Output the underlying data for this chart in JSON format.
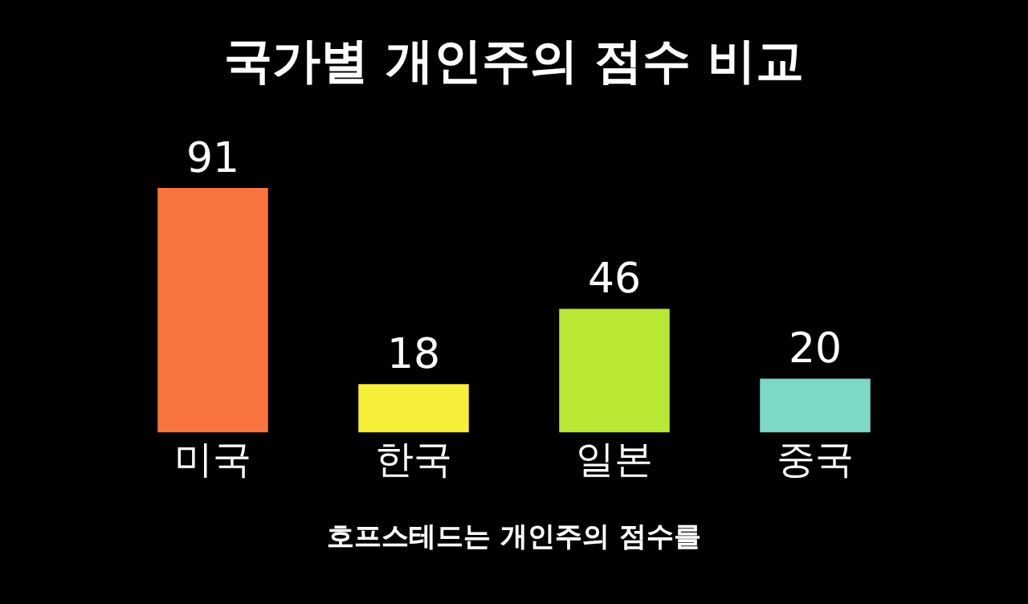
{
  "chart_data": {
    "type": "bar",
    "title": "국가별 개인주의 점수 비교",
    "categories": [
      "미국",
      "한국",
      "일본",
      "중국"
    ],
    "values": [
      91,
      18,
      46,
      20
    ],
    "colors": [
      "#f9733f",
      "#f7ee3a",
      "#b9e834",
      "#7dd9c6"
    ],
    "data_labels": true,
    "annotations": [
      "호프스테드는 개인주의 점수를"
    ]
  }
}
